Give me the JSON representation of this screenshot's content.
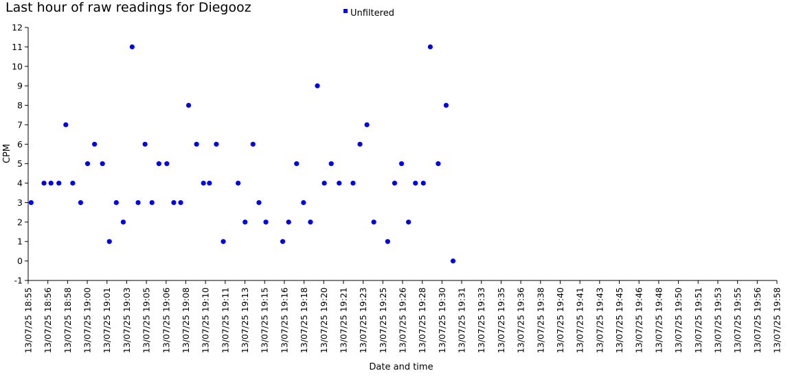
{
  "chart_data": {
    "type": "scatter",
    "title": "Last hour of raw readings for Diegooz",
    "xlabel": "Date and time",
    "ylabel": "CPM",
    "ylim": [
      -1,
      12
    ],
    "yticks": [
      -1,
      0,
      1,
      2,
      3,
      4,
      5,
      6,
      7,
      8,
      9,
      10,
      11,
      12
    ],
    "xlim": [
      "13/07/25 18:55",
      "13/07/25 19:58"
    ],
    "xtick_labels": [
      "13/07/25 18:55",
      "13/07/25 18:56",
      "13/07/25 18:58",
      "13/07/25 19:00",
      "13/07/25 19:01",
      "13/07/25 19:03",
      "13/07/25 19:05",
      "13/07/25 19:06",
      "13/07/25 19:08",
      "13/07/25 19:10",
      "13/07/25 19:11",
      "13/07/25 19:13",
      "13/07/25 19:15",
      "13/07/25 19:16",
      "13/07/25 19:18",
      "13/07/25 19:20",
      "13/07/25 19:21",
      "13/07/25 19:23",
      "13/07/25 19:25",
      "13/07/25 19:26",
      "13/07/25 19:28",
      "13/07/25 19:30",
      "13/07/25 19:31",
      "13/07/25 19:33",
      "13/07/25 19:35",
      "13/07/25 19:36",
      "13/07/25 19:38",
      "13/07/25 19:40",
      "13/07/25 19:41",
      "13/07/25 19:43",
      "13/07/25 19:45",
      "13/07/25 19:46",
      "13/07/25 19:48",
      "13/07/25 19:50",
      "13/07/25 19:51",
      "13/07/25 19:53",
      "13/07/25 19:55",
      "13/07/25 19:56",
      "13/07/25 19:58"
    ],
    "grid": false,
    "legend_position": "top-center",
    "series": [
      {
        "name": "Unfiltered",
        "color": "#0000ee",
        "points": [
          {
            "x": "13/07/25 18:55:15",
            "y": 3
          },
          {
            "x": "13/07/25 18:56:20",
            "y": 4
          },
          {
            "x": "13/07/25 18:56:55",
            "y": 4
          },
          {
            "x": "13/07/25 18:57:35",
            "y": 4
          },
          {
            "x": "13/07/25 18:58:10",
            "y": 7
          },
          {
            "x": "13/07/25 18:58:45",
            "y": 4
          },
          {
            "x": "13/07/25 18:59:25",
            "y": 3
          },
          {
            "x": "13/07/25 19:00:00",
            "y": 5
          },
          {
            "x": "13/07/25 19:00:35",
            "y": 6
          },
          {
            "x": "13/07/25 19:01:15",
            "y": 5
          },
          {
            "x": "13/07/25 19:01:50",
            "y": 1
          },
          {
            "x": "13/07/25 19:02:25",
            "y": 3
          },
          {
            "x": "13/07/25 19:03:00",
            "y": 2
          },
          {
            "x": "13/07/25 19:03:45",
            "y": 11
          },
          {
            "x": "13/07/25 19:04:15",
            "y": 3
          },
          {
            "x": "13/07/25 19:04:50",
            "y": 6
          },
          {
            "x": "13/07/25 19:05:25",
            "y": 3
          },
          {
            "x": "13/07/25 19:06:00",
            "y": 5
          },
          {
            "x": "13/07/25 19:06:40",
            "y": 5
          },
          {
            "x": "13/07/25 19:07:15",
            "y": 3
          },
          {
            "x": "13/07/25 19:07:50",
            "y": 3
          },
          {
            "x": "13/07/25 19:08:30",
            "y": 8
          },
          {
            "x": "13/07/25 19:09:10",
            "y": 6
          },
          {
            "x": "13/07/25 19:09:45",
            "y": 4
          },
          {
            "x": "13/07/25 19:10:15",
            "y": 4
          },
          {
            "x": "13/07/25 19:10:50",
            "y": 6
          },
          {
            "x": "13/07/25 19:11:25",
            "y": 1
          },
          {
            "x": "13/07/25 19:12:40",
            "y": 4
          },
          {
            "x": "13/07/25 19:13:15",
            "y": 2
          },
          {
            "x": "13/07/25 19:13:55",
            "y": 6
          },
          {
            "x": "13/07/25 19:14:25",
            "y": 3
          },
          {
            "x": "13/07/25 19:15:00",
            "y": 2
          },
          {
            "x": "13/07/25 19:16:25",
            "y": 1
          },
          {
            "x": "13/07/25 19:16:55",
            "y": 2
          },
          {
            "x": "13/07/25 19:17:35",
            "y": 5
          },
          {
            "x": "13/07/25 19:18:10",
            "y": 3
          },
          {
            "x": "13/07/25 19:18:45",
            "y": 2
          },
          {
            "x": "13/07/25 19:19:20",
            "y": 9
          },
          {
            "x": "13/07/25 19:19:55",
            "y": 4
          },
          {
            "x": "13/07/25 19:20:30",
            "y": 5
          },
          {
            "x": "13/07/25 19:21:10",
            "y": 4
          },
          {
            "x": "13/07/25 19:22:20",
            "y": 4
          },
          {
            "x": "13/07/25 19:22:55",
            "y": 6
          },
          {
            "x": "13/07/25 19:23:30",
            "y": 7
          },
          {
            "x": "13/07/25 19:24:05",
            "y": 2
          },
          {
            "x": "13/07/25 19:25:15",
            "y": 1
          },
          {
            "x": "13/07/25 19:25:50",
            "y": 4
          },
          {
            "x": "13/07/25 19:26:25",
            "y": 5
          },
          {
            "x": "13/07/25 19:27:00",
            "y": 2
          },
          {
            "x": "13/07/25 19:27:35",
            "y": 4
          },
          {
            "x": "13/07/25 19:28:15",
            "y": 4
          },
          {
            "x": "13/07/25 19:28:50",
            "y": 11
          },
          {
            "x": "13/07/25 19:29:30",
            "y": 5
          },
          {
            "x": "13/07/25 19:30:10",
            "y": 8
          },
          {
            "x": "13/07/25 19:30:45",
            "y": 0
          }
        ]
      }
    ]
  }
}
